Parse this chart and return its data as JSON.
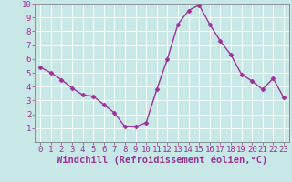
{
  "x": [
    0,
    1,
    2,
    3,
    4,
    5,
    6,
    7,
    8,
    9,
    10,
    11,
    12,
    13,
    14,
    15,
    16,
    17,
    18,
    19,
    20,
    21,
    22,
    23
  ],
  "y": [
    5.4,
    5.0,
    4.5,
    3.9,
    3.4,
    3.3,
    2.7,
    2.1,
    1.1,
    1.1,
    1.4,
    3.8,
    6.0,
    8.5,
    9.5,
    9.9,
    8.5,
    7.3,
    6.3,
    4.9,
    4.4,
    3.8,
    4.6,
    3.2
  ],
  "line_color": "#993399",
  "marker": "D",
  "marker_size": 2.5,
  "bg_color": "#c8e8e8",
  "grid_color": "#ffffff",
  "xlabel": "Windchill (Refroidissement éolien,°C)",
  "ylim": [
    0,
    10
  ],
  "xlim_min": -0.5,
  "xlim_max": 23.5,
  "yticks": [
    1,
    2,
    3,
    4,
    5,
    6,
    7,
    8,
    9,
    10
  ],
  "xticks": [
    0,
    1,
    2,
    3,
    4,
    5,
    6,
    7,
    8,
    9,
    10,
    11,
    12,
    13,
    14,
    15,
    16,
    17,
    18,
    19,
    20,
    21,
    22,
    23
  ],
  "tick_color": "#993399",
  "label_color": "#993399",
  "axis_color": "#993399",
  "font_size": 6.5,
  "xlabel_font_size": 7.5,
  "line_width": 1.0,
  "spine_color": "#808080"
}
